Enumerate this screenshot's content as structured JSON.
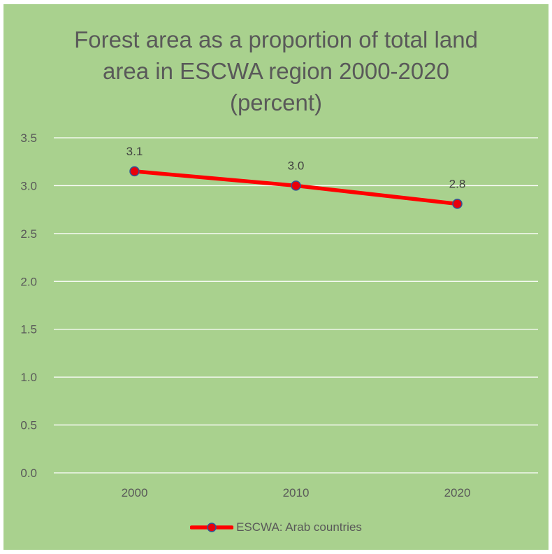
{
  "chart_data": {
    "type": "line",
    "title_lines": [
      "Forest area as a proportion of total land",
      "area in ESCWA region 2000-2020",
      "(percent)"
    ],
    "categories": [
      "2000",
      "2010",
      "2020"
    ],
    "series": [
      {
        "name": "ESCWA: Arab countries",
        "values": [
          3.15,
          3.0,
          2.81
        ],
        "data_labels": [
          "3.1",
          "3.0",
          "2.8"
        ],
        "line_color": "#ff0000",
        "marker_fill": "#e8000b",
        "marker_stroke": "#2f5597"
      }
    ],
    "ylim": [
      0,
      3.5
    ],
    "yticks": [
      "0.0",
      "0.5",
      "1.0",
      "1.5",
      "2.0",
      "2.5",
      "3.0",
      "3.5"
    ],
    "grid": true,
    "legend_position": "bottom",
    "background_color": "#a9d18e",
    "gridline_color": "#ffffff"
  }
}
